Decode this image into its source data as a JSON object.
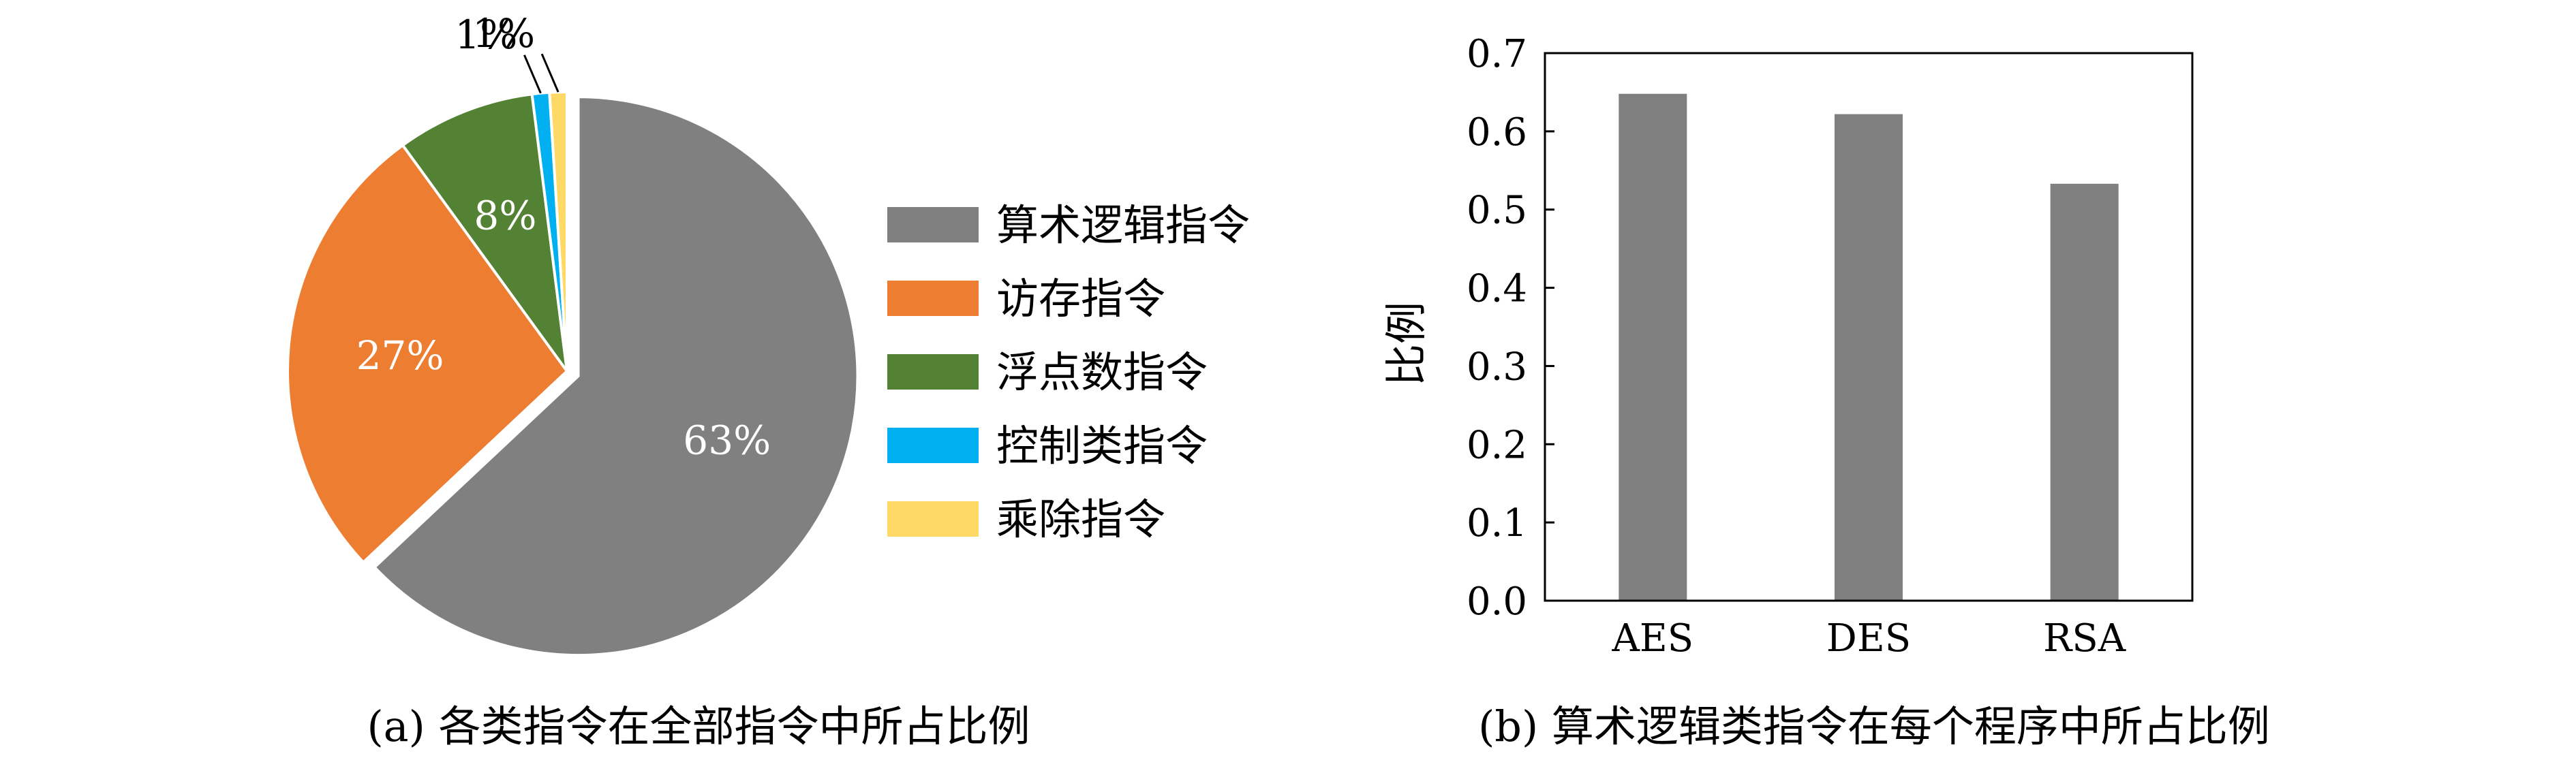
{
  "chart_data": [
    {
      "type": "pie",
      "caption": "(a) 各类指令在全部指令中所占比例",
      "start": "12 o'clock, clockwise",
      "slices": [
        {
          "label": "算术逻辑指令",
          "value": 63,
          "value_label": "63%",
          "color": "#808080",
          "exploded": true
        },
        {
          "label": "访存指令",
          "value": 27,
          "value_label": "27%",
          "color": "#ED7D31"
        },
        {
          "label": "浮点数指令",
          "value": 8,
          "value_label": "8%",
          "color": "#548235"
        },
        {
          "label": "控制类指令",
          "value": 1,
          "value_label": "1%",
          "color": "#00B0F0"
        },
        {
          "label": "乘除指令",
          "value": 1,
          "value_label": "1%",
          "color": "#FFD966"
        }
      ],
      "legend_position": "right"
    },
    {
      "type": "bar",
      "caption": "(b) 算术逻辑类指令在每个程序中所占比例",
      "categories": [
        "AES",
        "DES",
        "RSA"
      ],
      "values": [
        0.648,
        0.622,
        0.533
      ],
      "ylabel": "比例",
      "ylim": [
        0,
        0.7
      ],
      "yticks": [
        "0.0",
        "0.1",
        "0.2",
        "0.3",
        "0.4",
        "0.5",
        "0.6",
        "0.7"
      ],
      "bar_color": "#808080",
      "grid": false
    }
  ]
}
